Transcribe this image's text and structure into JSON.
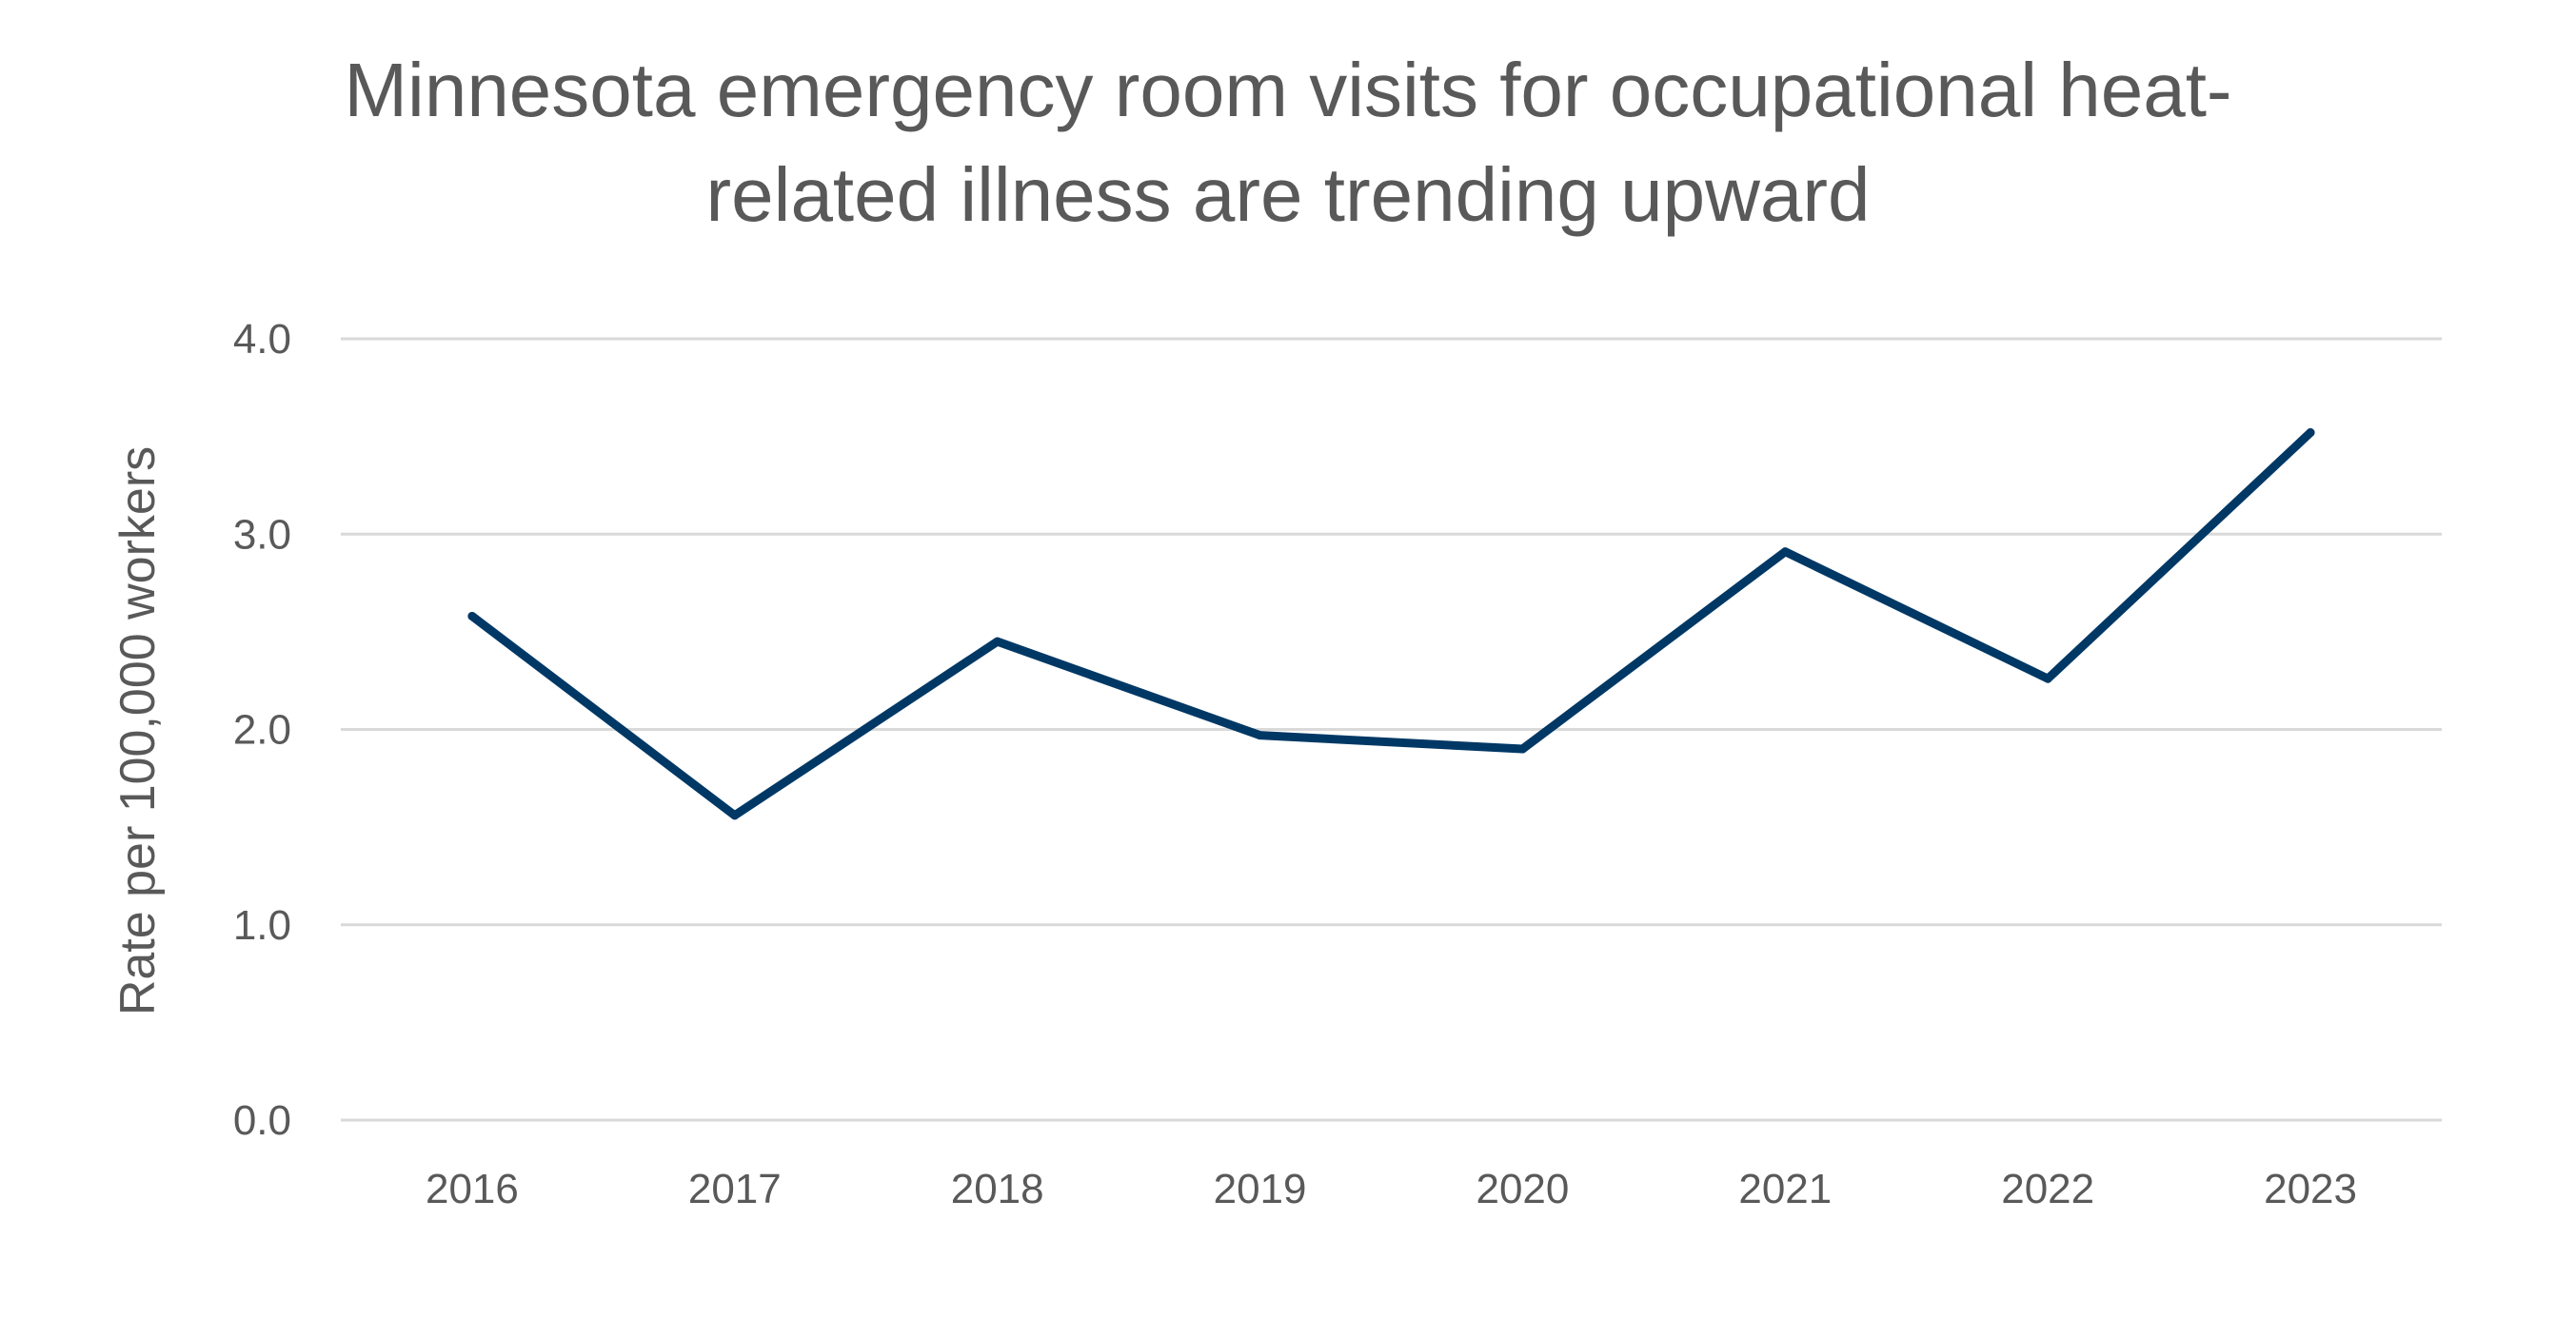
{
  "chart_data": {
    "type": "line",
    "title_lines": [
      "Minnesota emergency room visits for occupational heat-",
      "related illness are trending upward"
    ],
    "xlabel": "",
    "ylabel": "Rate per 100,000 workers",
    "categories": [
      "2016",
      "2017",
      "2018",
      "2019",
      "2020",
      "2021",
      "2022",
      "2023"
    ],
    "values": [
      2.58,
      1.56,
      2.45,
      1.97,
      1.9,
      2.91,
      2.26,
      3.52
    ],
    "ylim": [
      0,
      4
    ],
    "yticks": [
      "0.0",
      "1.0",
      "2.0",
      "3.0",
      "4.0"
    ],
    "grid": true,
    "legend": "none",
    "line_color": "#003865",
    "grid_color": "#d9d9d9"
  }
}
